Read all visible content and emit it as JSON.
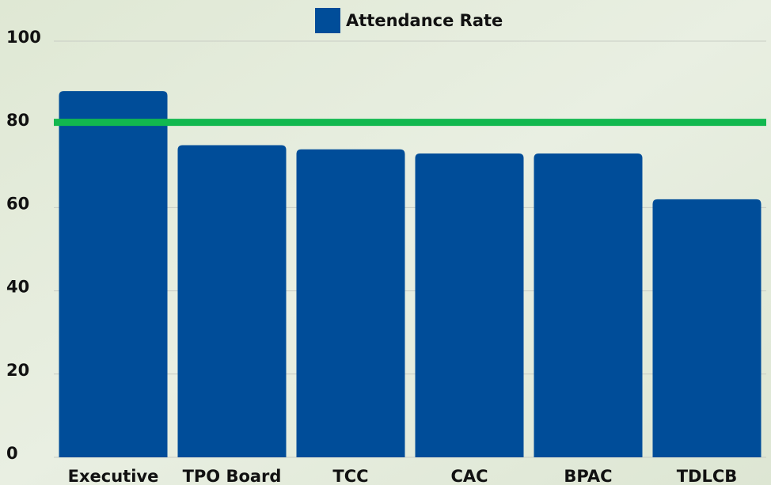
{
  "chart_data": {
    "type": "bar",
    "categories": [
      "Executive",
      "TPO Board",
      "TCC",
      "CAC",
      "BPAC",
      "TDLCB"
    ],
    "series": [
      {
        "name": "Attendance Rate",
        "color": "#004d99",
        "values": [
          88,
          75,
          74,
          73,
          73,
          62
        ]
      }
    ],
    "ylim": [
      0,
      100
    ],
    "yticks": [
      0,
      20,
      40,
      60,
      80,
      100
    ],
    "grid": true,
    "reference_line": {
      "value": 80.5,
      "color": "#12b84f"
    },
    "legend": "top"
  }
}
